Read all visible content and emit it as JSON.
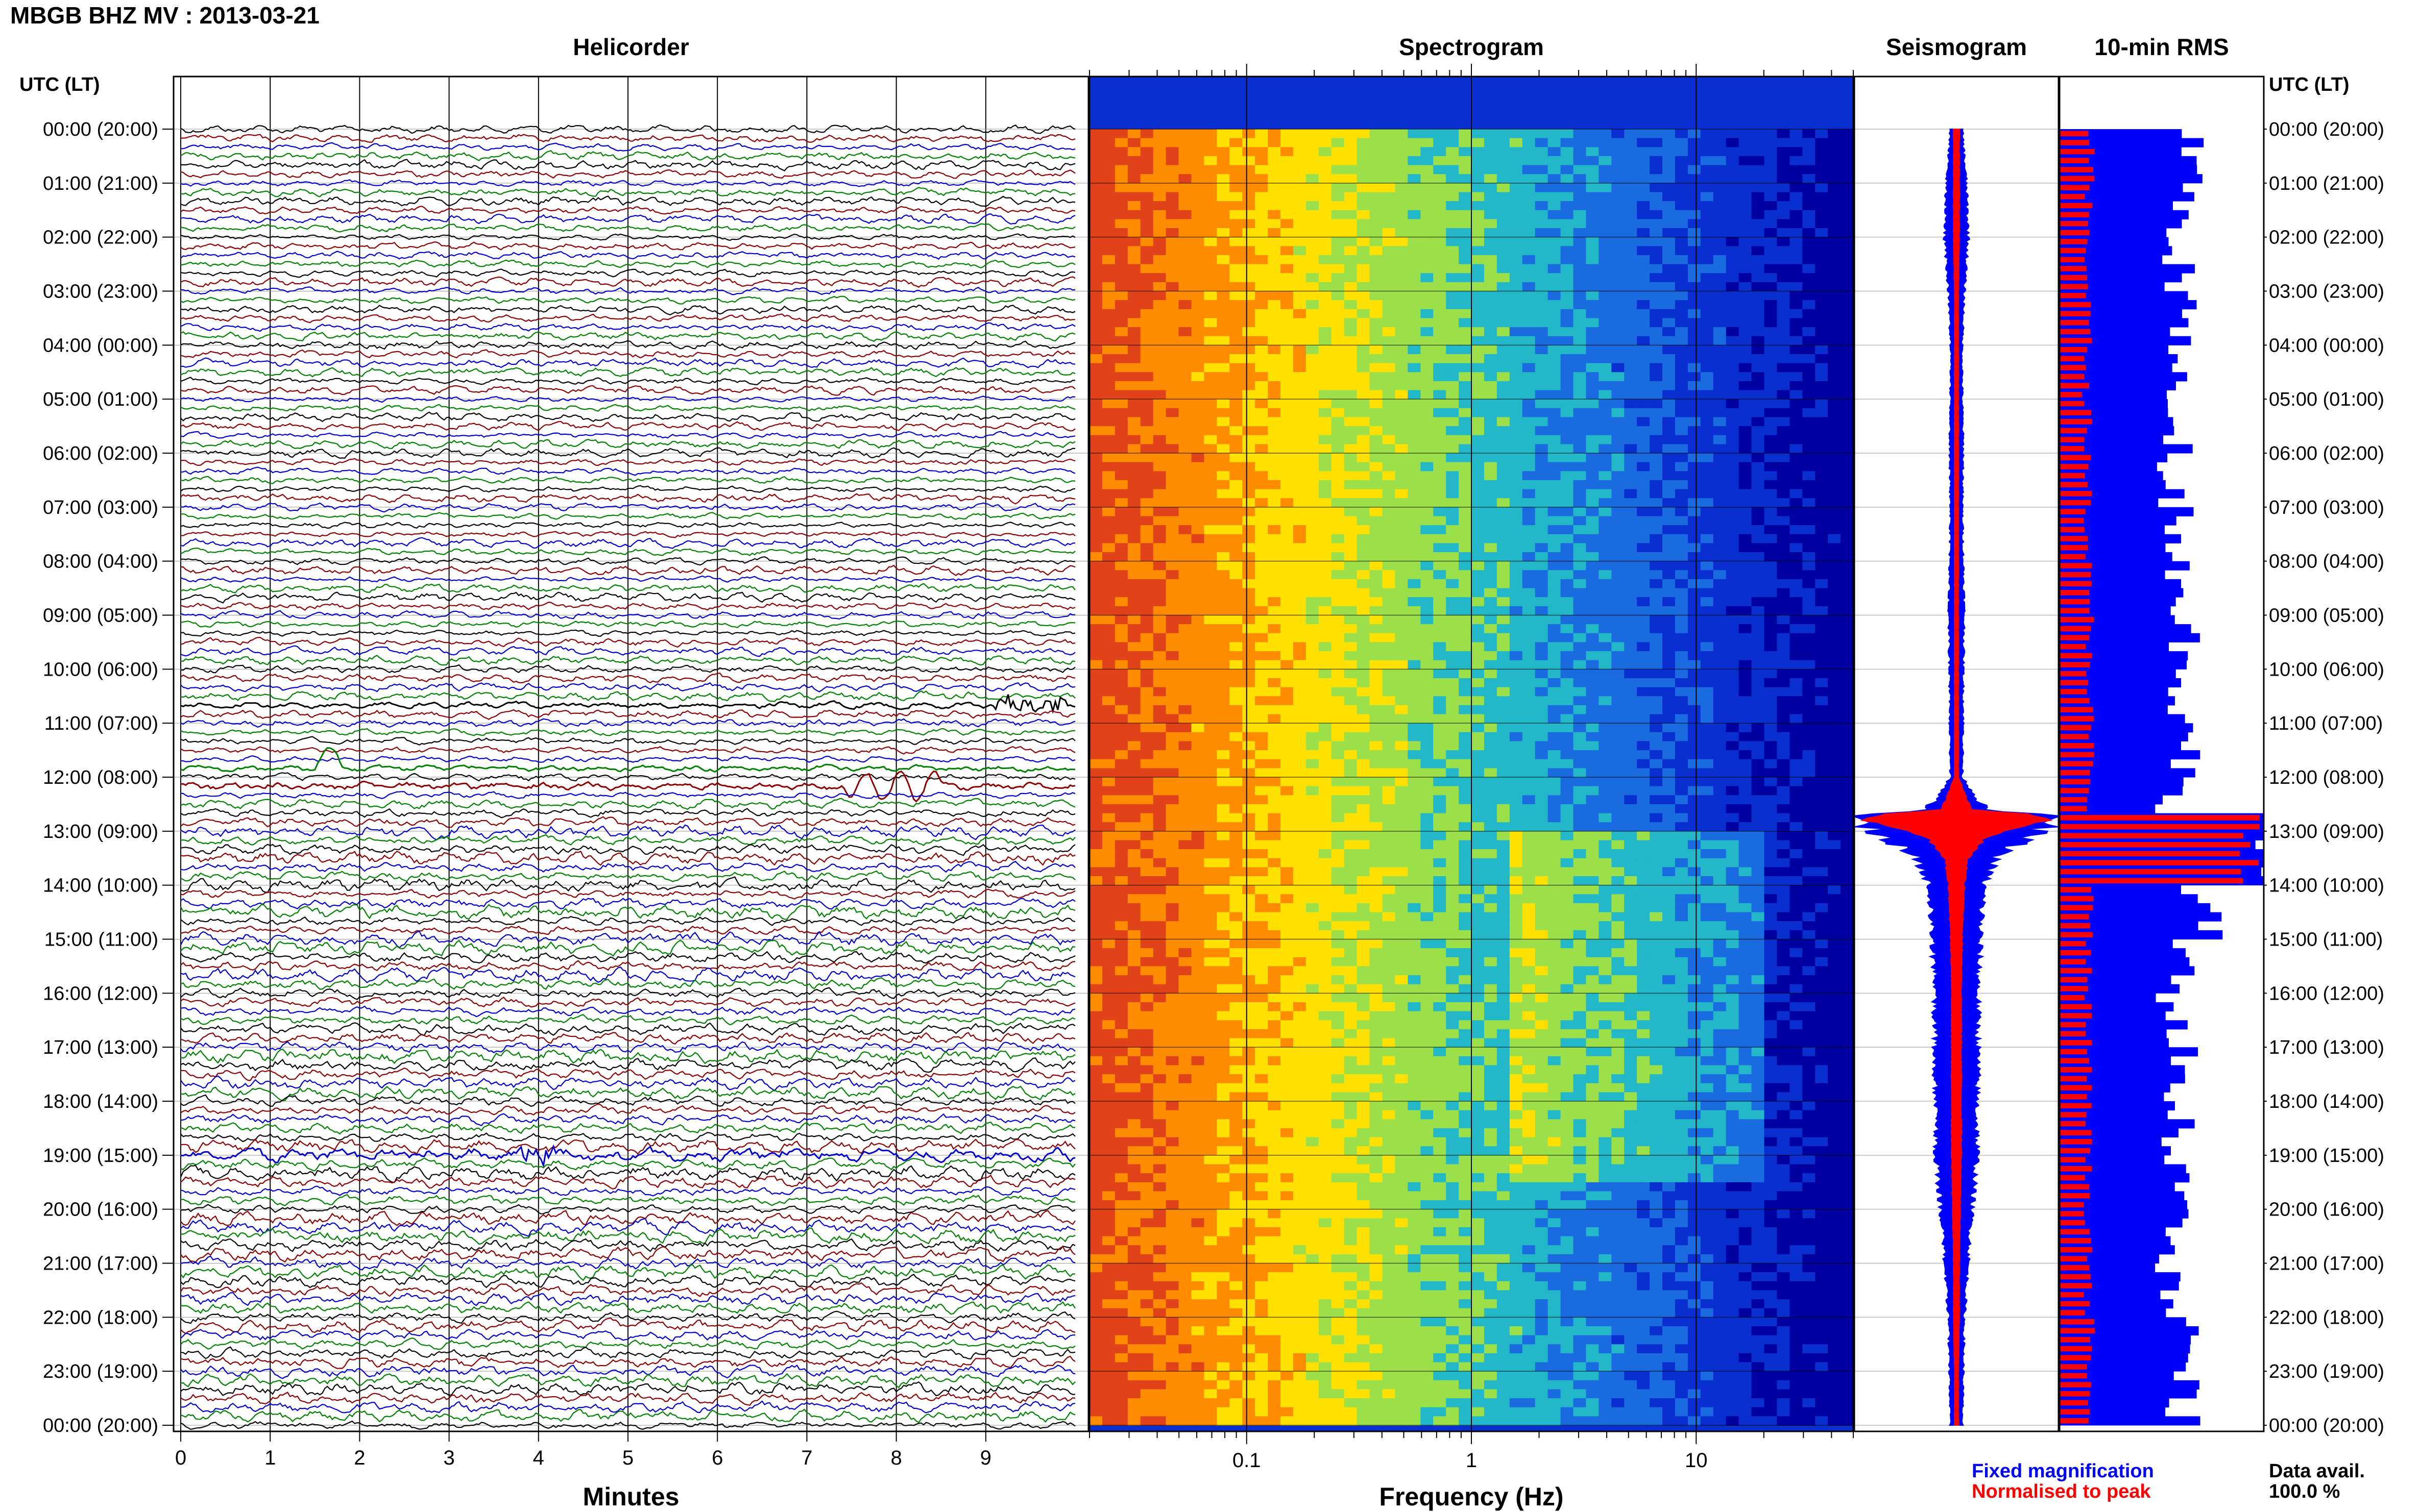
{
  "chart_data": {
    "type": "helicorder-spectrogram-panel",
    "title": "MBGB BHZ MV : 2013-03-21",
    "station": "MBGB",
    "channel": "BHZ",
    "network": "MV",
    "date": "2013-03-21",
    "panels": {
      "helicorder": {
        "title": "Helicorder",
        "xlabel": "Minutes",
        "xticks": [
          "0",
          "1",
          "2",
          "3",
          "4",
          "5",
          "6",
          "7",
          "8",
          "9"
        ],
        "xlim": [
          0,
          10
        ],
        "rows_per_hour": 6,
        "trace_colors": [
          "#000000",
          "#8b0000",
          "#0000cc",
          "#008000"
        ],
        "events": [
          {
            "utc_row": "10:40",
            "minute_start": 9.1,
            "minute_end": 9.9,
            "note": "burst"
          },
          {
            "utc_row": "11:50",
            "minute_start": 1.5,
            "minute_end": 1.8,
            "note": "spike"
          },
          {
            "utc_row": "12:10",
            "minute_start": 7.4,
            "minute_end": 8.5,
            "note": "long-period waves"
          },
          {
            "utc_row": "19:00",
            "minute_start": 3.8,
            "minute_end": 4.2,
            "note": "burst"
          }
        ]
      },
      "spectrogram": {
        "title": "Spectrogram",
        "xlabel": "Frequency (Hz)",
        "xscale": "log",
        "xlim": [
          0.02,
          50
        ],
        "xticks": [
          "0.1",
          "1",
          "10"
        ],
        "colormap": [
          "#e0421a",
          "#ff8c00",
          "#ffe000",
          "#9be04a",
          "#22b8c8",
          "#1a6ae0",
          "#0a2fd0",
          "#0000a0"
        ]
      },
      "seismogram": {
        "title": "Seismogram",
        "legend": [
          {
            "label": "Fixed magnification",
            "color": "#0000ff"
          },
          {
            "label": "Normalised to peak",
            "color": "#ff0000"
          }
        ],
        "amplitude_profile": [
          {
            "utc": 0.0,
            "fixed": 0.06,
            "norm": 0.03
          },
          {
            "utc": 1.0,
            "fixed": 0.1,
            "norm": 0.03
          },
          {
            "utc": 2.0,
            "fixed": 0.12,
            "norm": 0.03
          },
          {
            "utc": 3.0,
            "fixed": 0.08,
            "norm": 0.02
          },
          {
            "utc": 4.0,
            "fixed": 0.06,
            "norm": 0.02
          },
          {
            "utc": 5.0,
            "fixed": 0.06,
            "norm": 0.02
          },
          {
            "utc": 6.0,
            "fixed": 0.07,
            "norm": 0.02
          },
          {
            "utc": 7.0,
            "fixed": 0.06,
            "norm": 0.02
          },
          {
            "utc": 8.0,
            "fixed": 0.07,
            "norm": 0.02
          },
          {
            "utc": 9.0,
            "fixed": 0.08,
            "norm": 0.02
          },
          {
            "utc": 10.0,
            "fixed": 0.07,
            "norm": 0.02
          },
          {
            "utc": 11.0,
            "fixed": 0.07,
            "norm": 0.02
          },
          {
            "utc": 12.0,
            "fixed": 0.06,
            "norm": 0.02
          },
          {
            "utc": 12.6,
            "fixed": 0.3,
            "norm": 0.15
          },
          {
            "utc": 12.7,
            "fixed": 0.9,
            "norm": 0.8
          },
          {
            "utc": 12.8,
            "fixed": 1.0,
            "norm": 0.95
          },
          {
            "utc": 13.1,
            "fixed": 0.75,
            "norm": 0.3
          },
          {
            "utc": 13.5,
            "fixed": 0.4,
            "norm": 0.12
          },
          {
            "utc": 14.0,
            "fixed": 0.28,
            "norm": 0.08
          },
          {
            "utc": 15.0,
            "fixed": 0.24,
            "norm": 0.06
          },
          {
            "utc": 16.0,
            "fixed": 0.22,
            "norm": 0.05
          },
          {
            "utc": 17.0,
            "fixed": 0.22,
            "norm": 0.05
          },
          {
            "utc": 18.0,
            "fixed": 0.21,
            "norm": 0.05
          },
          {
            "utc": 19.0,
            "fixed": 0.21,
            "norm": 0.05
          },
          {
            "utc": 20.0,
            "fixed": 0.16,
            "norm": 0.04
          },
          {
            "utc": 21.0,
            "fixed": 0.12,
            "norm": 0.03
          },
          {
            "utc": 22.0,
            "fixed": 0.08,
            "norm": 0.03
          },
          {
            "utc": 23.0,
            "fixed": 0.07,
            "norm": 0.02
          },
          {
            "utc": 24.0,
            "fixed": 0.06,
            "norm": 0.02
          }
        ]
      },
      "rms": {
        "title": "10-min RMS",
        "bar_colors": {
          "fixed": "#0000ff",
          "normalised": "#ff0000"
        },
        "hourly_fixed": [
          0.65,
          0.6,
          0.58,
          0.6,
          0.55,
          0.58,
          0.56,
          0.6,
          0.58,
          0.62,
          0.6,
          0.62,
          0.55,
          1.0,
          0.7,
          0.58,
          0.55,
          0.6,
          0.58,
          0.6,
          0.55,
          0.52,
          0.62,
          0.6
        ],
        "hourly_normalised": [
          0.15,
          0.14,
          0.14,
          0.14,
          0.13,
          0.14,
          0.14,
          0.14,
          0.14,
          0.15,
          0.15,
          0.15,
          0.14,
          0.95,
          0.15,
          0.14,
          0.14,
          0.14,
          0.14,
          0.14,
          0.14,
          0.14,
          0.15,
          0.14
        ],
        "data_availability_label": "Data avail.",
        "data_availability_value": "100.0 %"
      }
    },
    "time_axis": {
      "header": "UTC (LT)",
      "labels": [
        "00:00 (20:00)",
        "01:00 (21:00)",
        "02:00 (22:00)",
        "03:00 (23:00)",
        "04:00 (00:00)",
        "05:00 (01:00)",
        "06:00 (02:00)",
        "07:00 (03:00)",
        "08:00 (04:00)",
        "09:00 (05:00)",
        "10:00 (06:00)",
        "11:00 (07:00)",
        "12:00 (08:00)",
        "13:00 (09:00)",
        "14:00 (10:00)",
        "15:00 (11:00)",
        "16:00 (12:00)",
        "17:00 (13:00)",
        "18:00 (14:00)",
        "19:00 (15:00)",
        "20:00 (16:00)",
        "21:00 (17:00)",
        "22:00 (18:00)",
        "23:00 (19:00)",
        "00:00 (20:00)"
      ]
    }
  }
}
